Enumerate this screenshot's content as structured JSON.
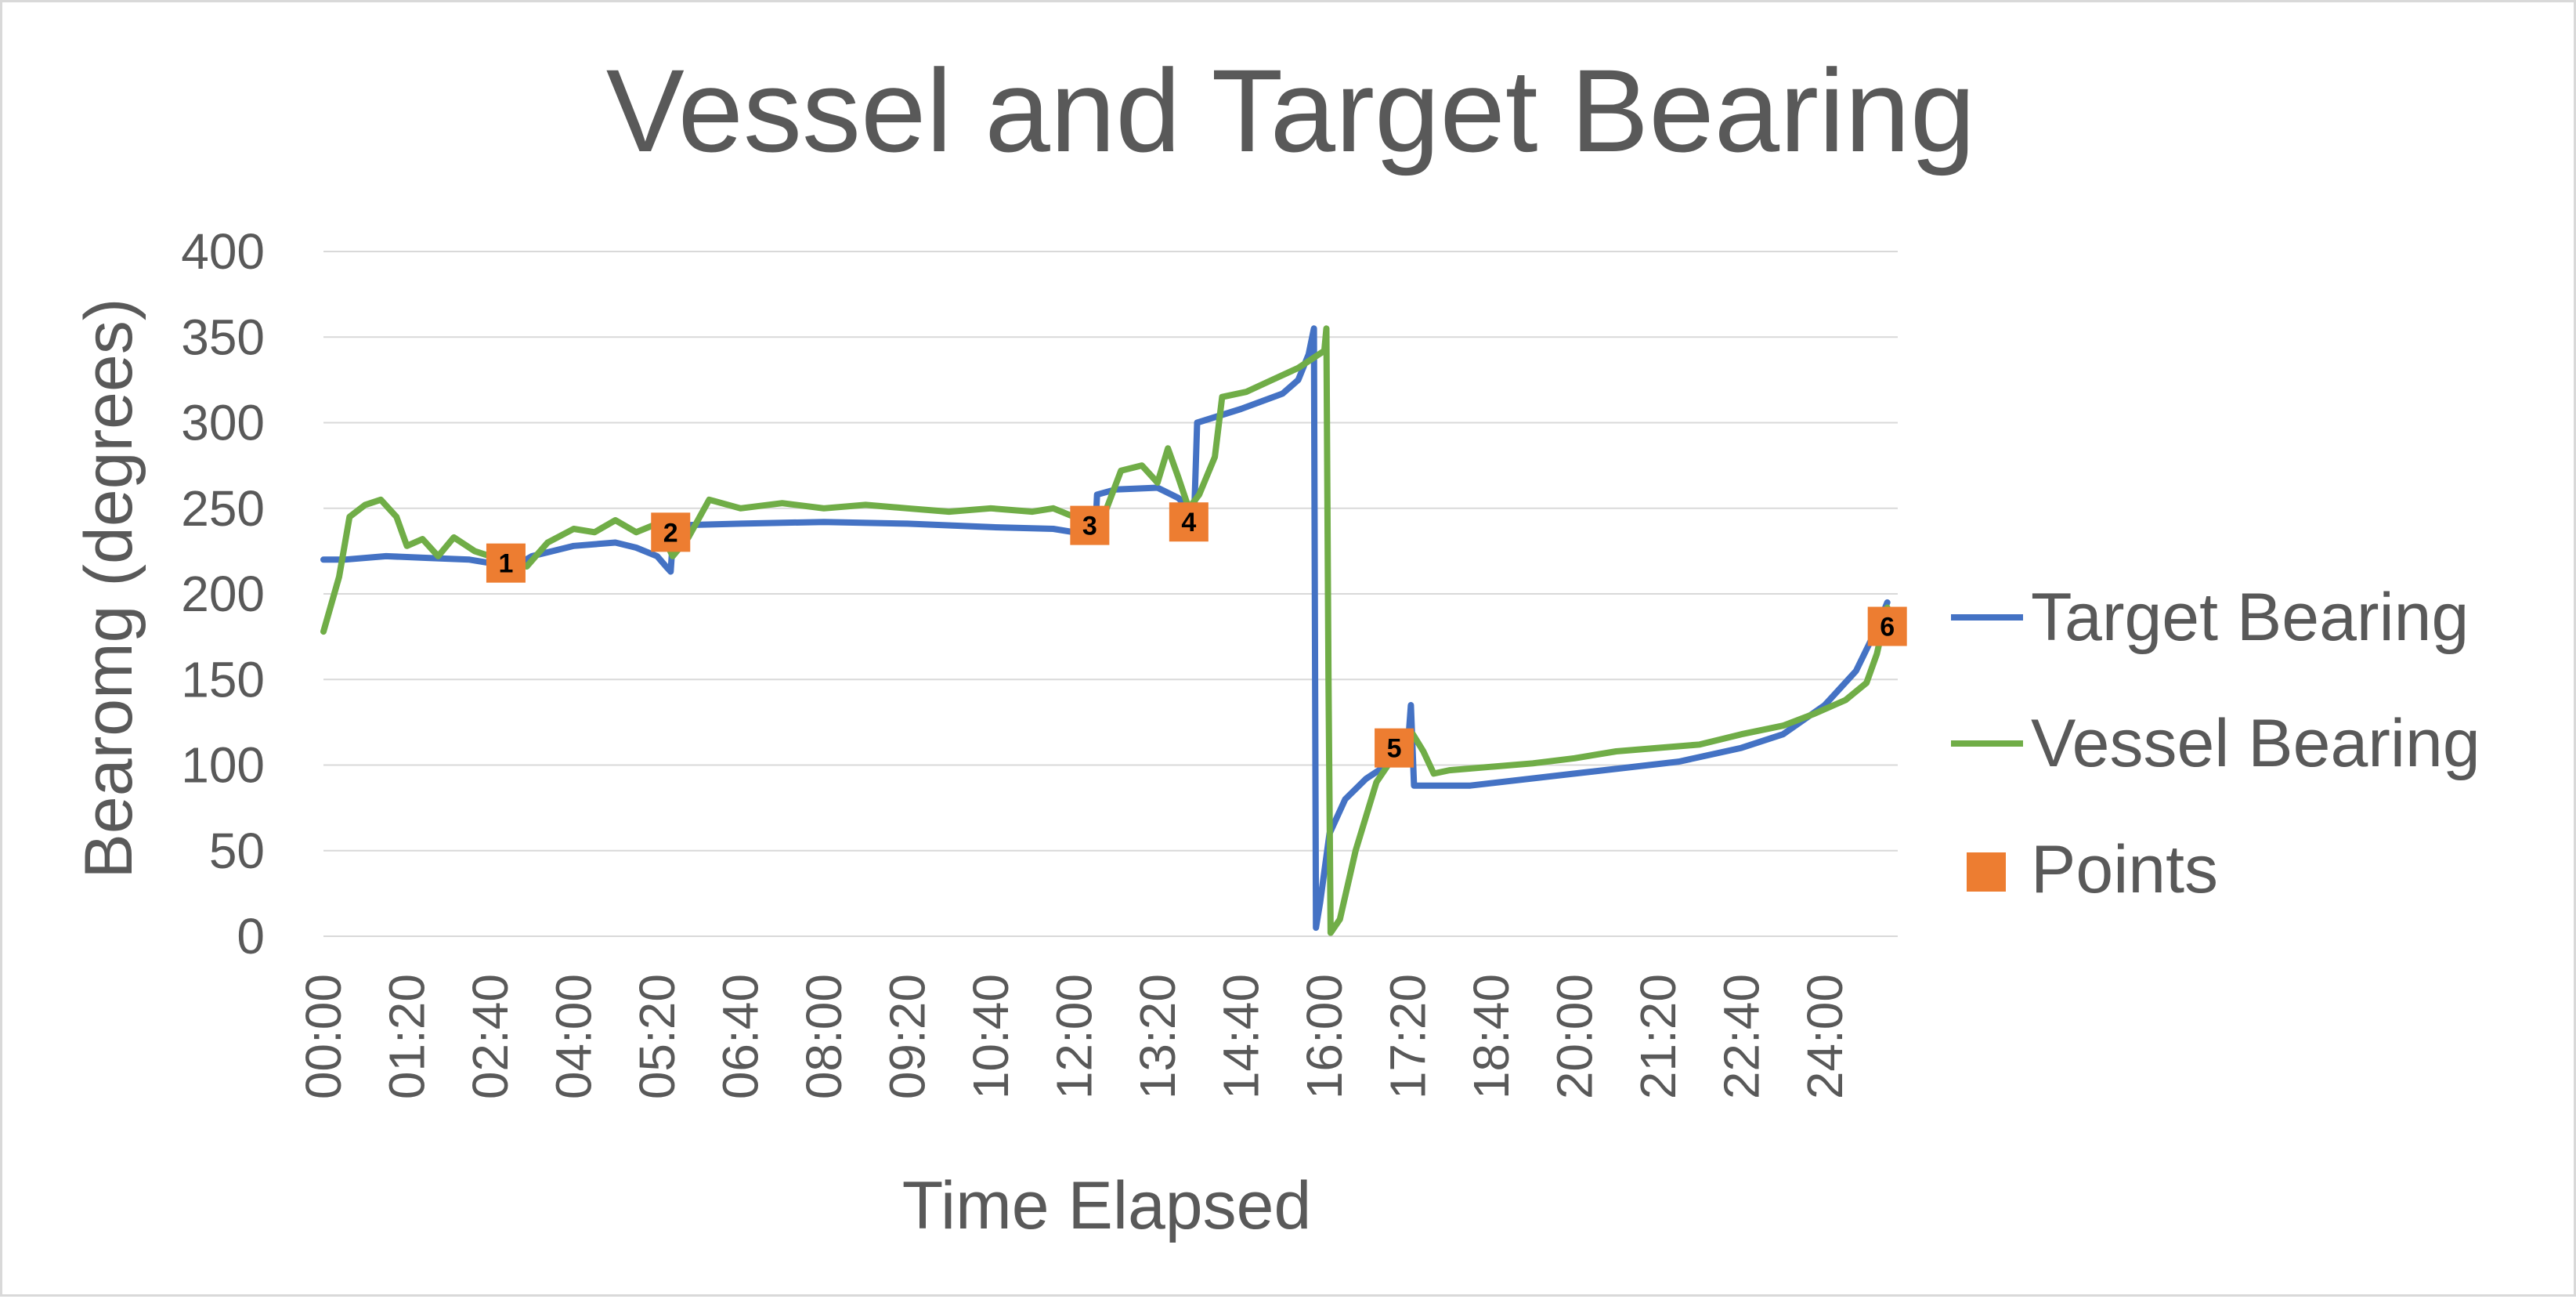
{
  "colors": {
    "target": "#4472c4",
    "vessel": "#70ad47",
    "points": "#ed7d31",
    "text": "#595959",
    "grid": "#d9d9d9"
  },
  "chart_data": {
    "type": "line",
    "title": "Vessel and Target Bearing",
    "xlabel": "Time Elapsed",
    "ylabel": "Bearomg (degrees)",
    "xlim": [
      0,
      1510
    ],
    "ylim": [
      0,
      400
    ],
    "y_ticks": [
      0,
      50,
      100,
      150,
      200,
      250,
      300,
      350,
      400
    ],
    "x_tick_labels": [
      "00:00",
      "01:20",
      "02:40",
      "04:00",
      "05:20",
      "06:40",
      "08:00",
      "09:20",
      "10:40",
      "12:00",
      "13:20",
      "14:40",
      "16:00",
      "17:20",
      "18:40",
      "20:00",
      "21:20",
      "22:40",
      "24:00"
    ],
    "x_tick_values": [
      0,
      80,
      160,
      240,
      320,
      400,
      480,
      560,
      640,
      720,
      800,
      880,
      960,
      1040,
      1120,
      1200,
      1280,
      1360,
      1440
    ],
    "grid": "horizontal",
    "legend": "right",
    "series": [
      {
        "name": "Target Bearing",
        "style": "line",
        "points": [
          [
            0,
            220
          ],
          [
            20,
            220
          ],
          [
            60,
            222
          ],
          [
            100,
            221
          ],
          [
            140,
            220
          ],
          [
            160,
            218
          ],
          [
            180,
            215
          ],
          [
            200,
            222
          ],
          [
            240,
            228
          ],
          [
            280,
            230
          ],
          [
            300,
            227
          ],
          [
            320,
            222
          ],
          [
            330,
            215
          ],
          [
            333,
            213
          ],
          [
            336,
            240
          ],
          [
            400,
            241
          ],
          [
            480,
            242
          ],
          [
            560,
            241
          ],
          [
            640,
            239
          ],
          [
            700,
            238
          ],
          [
            720,
            236
          ],
          [
            740,
            232
          ],
          [
            742,
            258
          ],
          [
            760,
            261
          ],
          [
            800,
            262
          ],
          [
            820,
            256
          ],
          [
            830,
            250
          ],
          [
            832,
            243
          ],
          [
            835,
            243
          ],
          [
            838,
            300
          ],
          [
            880,
            308
          ],
          [
            920,
            317
          ],
          [
            935,
            325
          ],
          [
            945,
            340
          ],
          [
            950,
            355
          ],
          [
            952,
            5
          ],
          [
            956,
            20
          ],
          [
            965,
            60
          ],
          [
            980,
            80
          ],
          [
            1000,
            92
          ],
          [
            1025,
            102
          ],
          [
            1040,
            110
          ],
          [
            1043,
            135
          ],
          [
            1046,
            88
          ],
          [
            1100,
            88
          ],
          [
            1200,
            95
          ],
          [
            1300,
            102
          ],
          [
            1360,
            110
          ],
          [
            1400,
            118
          ],
          [
            1440,
            135
          ],
          [
            1470,
            155
          ],
          [
            1490,
            180
          ],
          [
            1500,
            195
          ]
        ]
      },
      {
        "name": "Vessel Bearing",
        "style": "line",
        "points": [
          [
            0,
            178
          ],
          [
            15,
            210
          ],
          [
            25,
            245
          ],
          [
            40,
            252
          ],
          [
            55,
            255
          ],
          [
            70,
            245
          ],
          [
            80,
            228
          ],
          [
            95,
            232
          ],
          [
            110,
            222
          ],
          [
            125,
            233
          ],
          [
            145,
            225
          ],
          [
            160,
            222
          ],
          [
            175,
            222
          ],
          [
            195,
            216
          ],
          [
            215,
            230
          ],
          [
            240,
            238
          ],
          [
            260,
            236
          ],
          [
            280,
            243
          ],
          [
            300,
            236
          ],
          [
            320,
            241
          ],
          [
            335,
            222
          ],
          [
            350,
            233
          ],
          [
            370,
            255
          ],
          [
            400,
            250
          ],
          [
            440,
            253
          ],
          [
            480,
            250
          ],
          [
            520,
            252
          ],
          [
            560,
            250
          ],
          [
            600,
            248
          ],
          [
            640,
            250
          ],
          [
            680,
            248
          ],
          [
            700,
            250
          ],
          [
            720,
            245
          ],
          [
            745,
            240
          ],
          [
            765,
            272
          ],
          [
            785,
            275
          ],
          [
            800,
            265
          ],
          [
            810,
            285
          ],
          [
            820,
            268
          ],
          [
            830,
            250
          ],
          [
            840,
            258
          ],
          [
            855,
            280
          ],
          [
            862,
            315
          ],
          [
            885,
            318
          ],
          [
            910,
            325
          ],
          [
            935,
            332
          ],
          [
            960,
            342
          ],
          [
            962,
            355
          ],
          [
            964,
            150
          ],
          [
            966,
            2
          ],
          [
            975,
            10
          ],
          [
            990,
            50
          ],
          [
            1010,
            90
          ],
          [
            1030,
            108
          ],
          [
            1045,
            118
          ],
          [
            1055,
            108
          ],
          [
            1065,
            95
          ],
          [
            1080,
            97
          ],
          [
            1120,
            99
          ],
          [
            1160,
            101
          ],
          [
            1200,
            104
          ],
          [
            1240,
            108
          ],
          [
            1280,
            110
          ],
          [
            1320,
            112
          ],
          [
            1360,
            118
          ],
          [
            1400,
            123
          ],
          [
            1430,
            130
          ],
          [
            1460,
            138
          ],
          [
            1480,
            148
          ],
          [
            1490,
            165
          ],
          [
            1500,
            192
          ]
        ]
      },
      {
        "name": "Points",
        "style": "markers",
        "points": [
          {
            "label": "1",
            "x": 175,
            "y": 218
          },
          {
            "label": "2",
            "x": 333,
            "y": 236
          },
          {
            "label": "3",
            "x": 735,
            "y": 240
          },
          {
            "label": "4",
            "x": 830,
            "y": 242
          },
          {
            "label": "5",
            "x": 1027,
            "y": 110
          },
          {
            "label": "6",
            "x": 1500,
            "y": 181
          }
        ]
      }
    ]
  }
}
